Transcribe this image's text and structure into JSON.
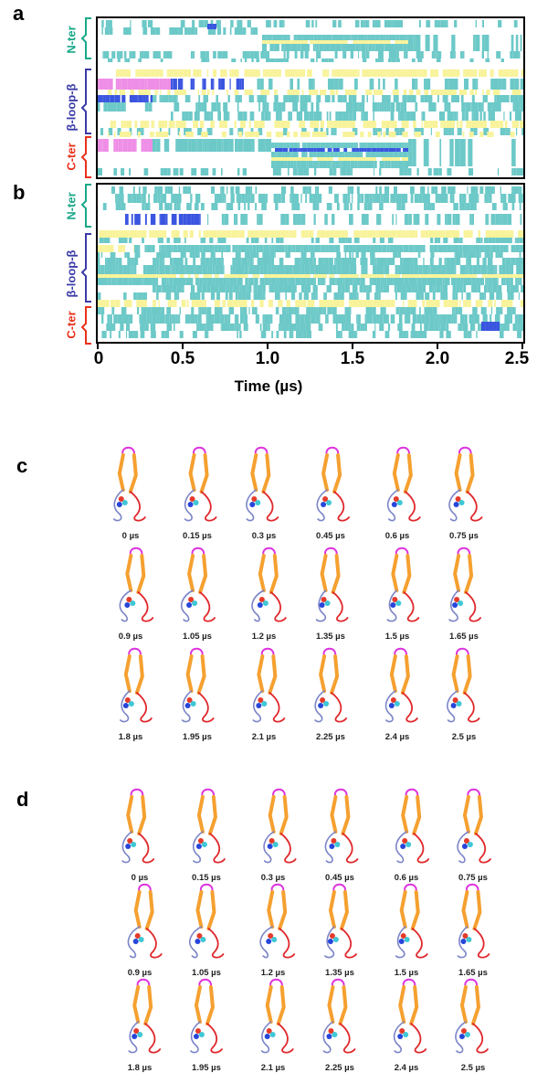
{
  "panels": {
    "a": {
      "letter": "a"
    },
    "b": {
      "letter": "b"
    },
    "c": {
      "letter": "c"
    },
    "d": {
      "letter": "d"
    }
  },
  "regions": {
    "nter": {
      "label": "N-ter",
      "color": "#19a889"
    },
    "loop": {
      "label": "β-loop-β",
      "color": "#3b3ba8"
    },
    "cter": {
      "label": "C-ter",
      "color": "#e8321c"
    }
  },
  "axis": {
    "xlabel": "Time (µs)",
    "ticks": [
      "0",
      "0.5",
      "1.0",
      "1.5",
      "2.0",
      "2.5"
    ]
  },
  "colors": {
    "teal": "#6cc9c8",
    "yellow": "#f8f39a",
    "magenta": "#ee8ee6",
    "blue": "#3a55e0",
    "helix_orange": "#f5a030",
    "coil_red": "#e0282c",
    "coil_blue": "#7c85c8",
    "loop_magenta": "#dd33dd"
  },
  "snapshots_c": [
    "0 µs",
    "0.15 µs",
    "0.3 µs",
    "0.45 µs",
    "0.6 µs",
    "0.75 µs",
    "0.9 µs",
    "1.05 µs",
    "1.2 µs",
    "1.35 µs",
    "1.5 µs",
    "1.65 µs",
    "1.8 µs",
    "1.95 µs",
    "2.1 µs",
    "2.25 µs",
    "2.4 µs",
    "2.5 µs"
  ],
  "snapshots_d": [
    "0 µs",
    "0.15 µs",
    "0.3 µs",
    "0.45 µs",
    "0.6 µs",
    "0.75 µs",
    "0.9 µs",
    "1.05 µs",
    "1.2 µs",
    "1.35 µs",
    "1.5 µs",
    "1.65 µs",
    "1.8 µs",
    "1.95 µs",
    "2.1 µs",
    "2.25 µs",
    "2.4 µs",
    "2.5 µs"
  ]
}
